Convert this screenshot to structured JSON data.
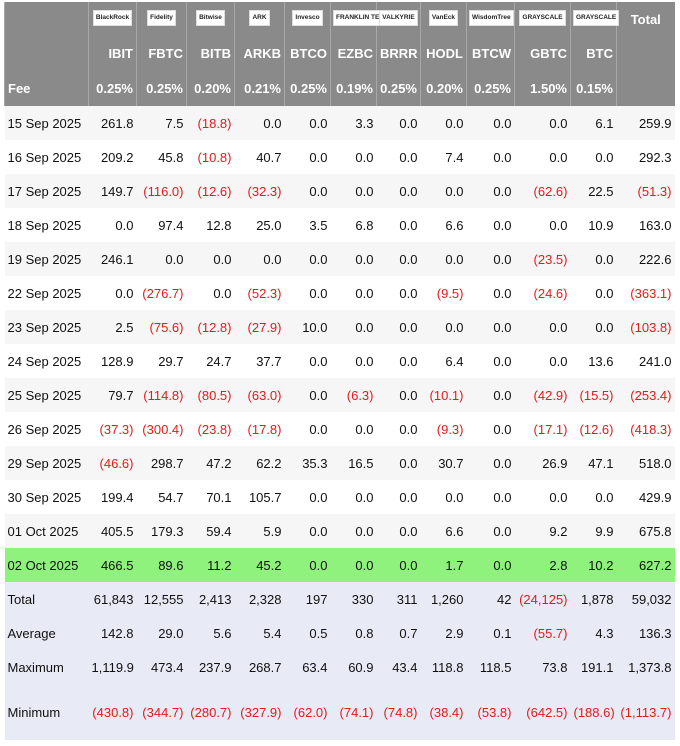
{
  "table": {
    "logos": [
      "BlackRock",
      "Fidelity",
      "Bitwise",
      "ARK",
      "Invesco",
      "FRANKLIN TEMPLETON",
      "VALKYRIE",
      "VanEck",
      "WisdomTree",
      "GRAYSCALE",
      "GRAYSCALE"
    ],
    "total_header": "Total",
    "tickers": [
      "IBIT",
      "FBTC",
      "BITB",
      "ARKB",
      "BTCO",
      "EZBC",
      "BRRR",
      "HODL",
      "BTCW",
      "GBTC",
      "BTC"
    ],
    "fee_label": "Fee",
    "fees": [
      "0.25%",
      "0.25%",
      "0.20%",
      "0.21%",
      "0.25%",
      "0.19%",
      "0.25%",
      "0.20%",
      "0.25%",
      "1.50%",
      "0.15%"
    ],
    "rows": [
      {
        "label": "15 Sep 2025",
        "cells": [
          "261.8",
          "7.5",
          "(18.8)",
          "0.0",
          "0.0",
          "3.3",
          "0.0",
          "0.0",
          "0.0",
          "0.0",
          "6.1",
          "259.9"
        ]
      },
      {
        "label": "16 Sep 2025",
        "cells": [
          "209.2",
          "45.8",
          "(10.8)",
          "40.7",
          "0.0",
          "0.0",
          "0.0",
          "7.4",
          "0.0",
          "0.0",
          "0.0",
          "292.3"
        ]
      },
      {
        "label": "17 Sep 2025",
        "cells": [
          "149.7",
          "(116.0)",
          "(12.6)",
          "(32.3)",
          "0.0",
          "0.0",
          "0.0",
          "0.0",
          "0.0",
          "(62.6)",
          "22.5",
          "(51.3)"
        ]
      },
      {
        "label": "18 Sep 2025",
        "cells": [
          "0.0",
          "97.4",
          "12.8",
          "25.0",
          "3.5",
          "6.8",
          "0.0",
          "6.6",
          "0.0",
          "0.0",
          "10.9",
          "163.0"
        ]
      },
      {
        "label": "19 Sep 2025",
        "cells": [
          "246.1",
          "0.0",
          "0.0",
          "0.0",
          "0.0",
          "0.0",
          "0.0",
          "0.0",
          "0.0",
          "(23.5)",
          "0.0",
          "222.6"
        ]
      },
      {
        "label": "22 Sep 2025",
        "cells": [
          "0.0",
          "(276.7)",
          "0.0",
          "(52.3)",
          "0.0",
          "0.0",
          "0.0",
          "(9.5)",
          "0.0",
          "(24.6)",
          "0.0",
          "(363.1)"
        ]
      },
      {
        "label": "23 Sep 2025",
        "cells": [
          "2.5",
          "(75.6)",
          "(12.8)",
          "(27.9)",
          "10.0",
          "0.0",
          "0.0",
          "0.0",
          "0.0",
          "0.0",
          "0.0",
          "(103.8)"
        ]
      },
      {
        "label": "24 Sep 2025",
        "cells": [
          "128.9",
          "29.7",
          "24.7",
          "37.7",
          "0.0",
          "0.0",
          "0.0",
          "6.4",
          "0.0",
          "0.0",
          "13.6",
          "241.0"
        ]
      },
      {
        "label": "25 Sep 2025",
        "cells": [
          "79.7",
          "(114.8)",
          "(80.5)",
          "(63.0)",
          "0.0",
          "(6.3)",
          "0.0",
          "(10.1)",
          "0.0",
          "(42.9)",
          "(15.5)",
          "(253.4)"
        ]
      },
      {
        "label": "26 Sep 2025",
        "cells": [
          "(37.3)",
          "(300.4)",
          "(23.8)",
          "(17.8)",
          "0.0",
          "0.0",
          "0.0",
          "(9.3)",
          "0.0",
          "(17.1)",
          "(12.6)",
          "(418.3)"
        ]
      },
      {
        "label": "29 Sep 2025",
        "cells": [
          "(46.6)",
          "298.7",
          "47.2",
          "62.2",
          "35.3",
          "16.5",
          "0.0",
          "30.7",
          "0.0",
          "26.9",
          "47.1",
          "518.0"
        ]
      },
      {
        "label": "30 Sep 2025",
        "cells": [
          "199.4",
          "54.7",
          "70.1",
          "105.7",
          "0.0",
          "0.0",
          "0.0",
          "0.0",
          "0.0",
          "0.0",
          "0.0",
          "429.9"
        ]
      },
      {
        "label": "01 Oct 2025",
        "cells": [
          "405.5",
          "179.3",
          "59.4",
          "5.9",
          "0.0",
          "0.0",
          "0.0",
          "6.6",
          "0.0",
          "9.2",
          "9.9",
          "675.8"
        ]
      },
      {
        "label": "02 Oct 2025",
        "cells": [
          "466.5",
          "89.6",
          "11.2",
          "45.2",
          "0.0",
          "0.0",
          "0.0",
          "1.7",
          "0.0",
          "2.8",
          "10.2",
          "627.2"
        ]
      }
    ],
    "summary": [
      {
        "label": "Total",
        "cells": [
          "61,843",
          "12,555",
          "2,413",
          "2,328",
          "197",
          "330",
          "311",
          "1,260",
          "42",
          "(24,125)",
          "1,878",
          "59,032"
        ]
      },
      {
        "label": "Average",
        "cells": [
          "142.8",
          "29.0",
          "5.6",
          "5.4",
          "0.5",
          "0.8",
          "0.7",
          "2.9",
          "0.1",
          "(55.7)",
          "4.3",
          "136.3"
        ]
      },
      {
        "label": "Maximum",
        "cells": [
          "1,119.9",
          "473.4",
          "237.9",
          "268.7",
          "63.4",
          "60.9",
          "43.4",
          "118.8",
          "118.5",
          "73.8",
          "191.1",
          "1,373.8"
        ]
      },
      {
        "label": "Minimum",
        "cells": [
          "(430.8)",
          "(344.7)",
          "(280.7)",
          "(327.9)",
          "(62.0)",
          "(74.1)",
          "(74.8)",
          "(38.4)",
          "(53.8)",
          "(642.5)",
          "(188.6)",
          "(1,113.7)"
        ]
      }
    ]
  }
}
